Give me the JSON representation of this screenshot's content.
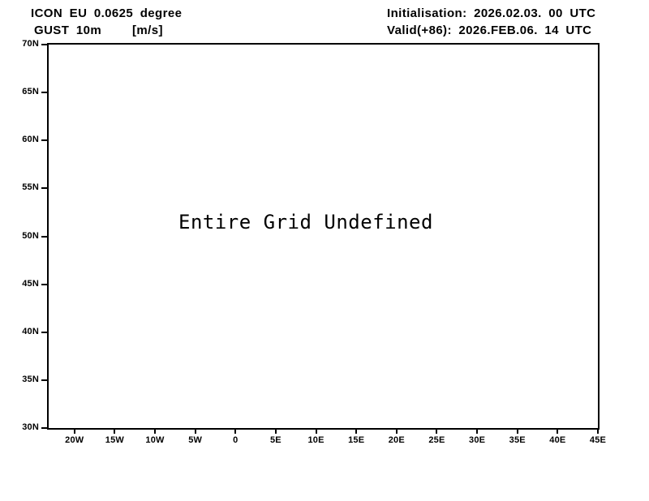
{
  "colors": {
    "background": "#ffffff",
    "ink": "#000000"
  },
  "header": {
    "model_line": "ICON EU 0.0625 degree",
    "variable": "GUST 10m",
    "units": "[m/s]",
    "initialisation": "Initialisation: 2026.02.03. 00 UTC",
    "valid": "Valid(+86): 2026.FEB.06. 14 UTC"
  },
  "chart_data": {
    "type": "map",
    "title": "ICON EU 0.0625 degree",
    "subtitle": "GUST 10m [m/s]",
    "variable": "GUST 10m",
    "units": "m/s",
    "initialisation_time": "2026.02.03. 00 UTC",
    "valid_time": "2026.FEB.06. 14 UTC",
    "forecast_step": "+86",
    "annotation": "Entire Grid Undefined",
    "grid": false,
    "legend": false,
    "series": [],
    "x_axis": {
      "kind": "longitude",
      "range": [
        -23.2,
        45
      ],
      "tick_values": [
        -20,
        -15,
        -10,
        -5,
        0,
        5,
        10,
        15,
        20,
        25,
        30,
        35,
        40,
        45
      ],
      "tick_labels": [
        "20W",
        "15W",
        "10W",
        "5W",
        "0",
        "5E",
        "10E",
        "15E",
        "20E",
        "25E",
        "30E",
        "35E",
        "40E",
        "45E"
      ]
    },
    "y_axis": {
      "kind": "latitude",
      "range": [
        30,
        70
      ],
      "tick_values": [
        30,
        35,
        40,
        45,
        50,
        55,
        60,
        65,
        70
      ],
      "tick_labels": [
        "30N",
        "35N",
        "40N",
        "45N",
        "50N",
        "55N",
        "60N",
        "65N",
        "70N"
      ]
    }
  }
}
